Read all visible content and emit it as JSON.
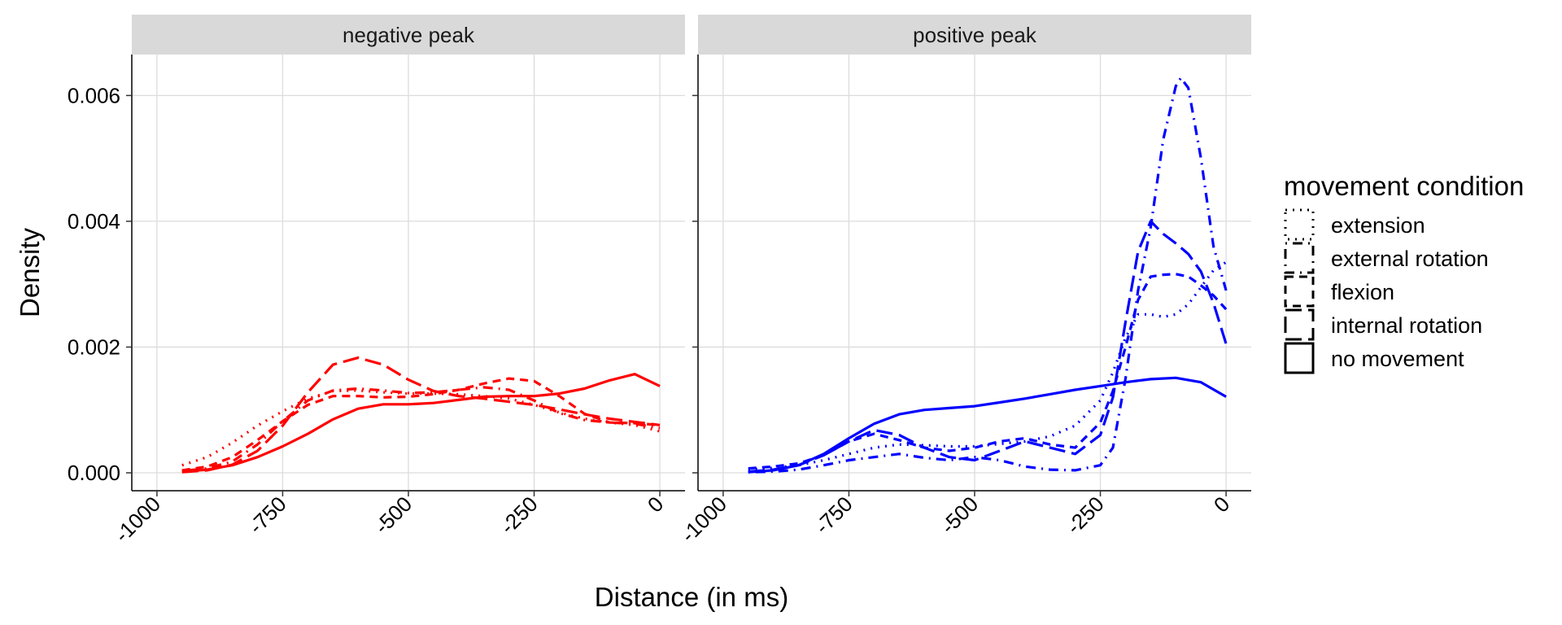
{
  "chart_data": {
    "type": "line",
    "xlabel": "Distance (in ms)",
    "ylabel": "Density",
    "xlim": [
      -1000,
      0
    ],
    "ylim": [
      0,
      0.0066
    ],
    "x_ticks": [
      -1000,
      -750,
      -500,
      -250,
      0
    ],
    "x_tick_labels": [
      "-1000",
      "-750",
      "-500",
      "-250",
      "0"
    ],
    "y_ticks": [
      0,
      0.002,
      0.004,
      0.006
    ],
    "y_tick_labels": [
      "0.000",
      "0.002",
      "0.004",
      "0.006"
    ],
    "grid": true,
    "legend": {
      "title": "movement condition",
      "position": "right",
      "entries": [
        {
          "label": "extension",
          "dash": "dotted"
        },
        {
          "label": "external rotation",
          "dash": "dotdash"
        },
        {
          "label": "flexion",
          "dash": "dashed"
        },
        {
          "label": "internal rotation",
          "dash": "longdash"
        },
        {
          "label": "no movement",
          "dash": "solid"
        }
      ]
    },
    "panels": [
      {
        "strip": "negative peak",
        "color": "#ff0000",
        "series": [
          {
            "name": "no movement",
            "dash": "solid",
            "x": [
              -950,
              -900,
              -850,
              -800,
              -750,
              -700,
              -650,
              -600,
              -550,
              -500,
              -450,
              -400,
              -350,
              -300,
              -250,
              -200,
              -150,
              -100,
              -50,
              0
            ],
            "y": [
              2e-05,
              5e-05,
              0.00012,
              0.00025,
              0.00042,
              0.00062,
              0.00085,
              0.00102,
              0.00109,
              0.00109,
              0.00111,
              0.00116,
              0.00121,
              0.00122,
              0.00122,
              0.00126,
              0.00134,
              0.00147,
              0.00157,
              0.00138
            ]
          },
          {
            "name": "extension",
            "dash": "dotted",
            "x": [
              -950,
              -900,
              -850,
              -800,
              -750,
              -700,
              -650,
              -600,
              -550,
              -500,
              -450,
              -400,
              -350,
              -300,
              -250,
              -200,
              -150,
              -100,
              -50,
              0
            ],
            "y": [
              0.00012,
              0.00025,
              0.00048,
              0.00075,
              0.00098,
              0.00118,
              0.0013,
              0.00131,
              0.00128,
              0.00126,
              0.00126,
              0.00125,
              0.00122,
              0.00118,
              0.00108,
              0.00096,
              0.00086,
              0.0008,
              0.00076,
              0.00066
            ]
          },
          {
            "name": "external rotation",
            "dash": "dotdash",
            "x": [
              -950,
              -900,
              -850,
              -800,
              -750,
              -700,
              -650,
              -600,
              -550,
              -500,
              -450,
              -400,
              -350,
              -300,
              -250,
              -200,
              -150,
              -100,
              -50,
              0
            ],
            "y": [
              3e-05,
              7e-05,
              0.00018,
              0.00045,
              0.00082,
              0.00115,
              0.00131,
              0.00134,
              0.00131,
              0.00127,
              0.00128,
              0.00132,
              0.00136,
              0.00132,
              0.00115,
              0.00095,
              0.00084,
              0.0008,
              0.00078,
              0.00071
            ]
          },
          {
            "name": "flexion",
            "dash": "dashed",
            "x": [
              -950,
              -900,
              -850,
              -800,
              -750,
              -700,
              -650,
              -600,
              -550,
              -500,
              -450,
              -400,
              -350,
              -300,
              -250,
              -200,
              -150,
              -100,
              -50,
              0
            ],
            "y": [
              4e-05,
              0.0001,
              0.00025,
              0.00052,
              0.00082,
              0.00108,
              0.00122,
              0.00122,
              0.0012,
              0.00121,
              0.00125,
              0.00132,
              0.00142,
              0.0015,
              0.00146,
              0.00122,
              0.00094,
              0.0008,
              0.00079,
              0.00076
            ]
          },
          {
            "name": "internal rotation",
            "dash": "longdash",
            "x": [
              -950,
              -900,
              -850,
              -800,
              -750,
              -700,
              -650,
              -600,
              -550,
              -500,
              -450,
              -400,
              -350,
              -300,
              -250,
              -200,
              -150,
              -100,
              -50,
              0
            ],
            "y": [
              1e-05,
              4e-05,
              0.00013,
              0.00035,
              0.00075,
              0.00128,
              0.00172,
              0.00183,
              0.00172,
              0.00148,
              0.0013,
              0.00122,
              0.00118,
              0.00113,
              0.00108,
              0.00101,
              0.00093,
              0.00086,
              0.00081,
              0.00076
            ]
          }
        ]
      },
      {
        "strip": "positive peak",
        "color": "#0000ff",
        "series": [
          {
            "name": "no movement",
            "dash": "solid",
            "x": [
              -950,
              -900,
              -850,
              -800,
              -750,
              -700,
              -650,
              -600,
              -550,
              -500,
              -450,
              -400,
              -350,
              -300,
              -250,
              -200,
              -150,
              -100,
              -50,
              0
            ],
            "y": [
              1e-05,
              4e-05,
              0.00012,
              0.0003,
              0.00055,
              0.00078,
              0.00093,
              0.001,
              0.00103,
              0.00106,
              0.00112,
              0.00118,
              0.00125,
              0.00132,
              0.00138,
              0.00144,
              0.00149,
              0.00151,
              0.00144,
              0.00121
            ]
          },
          {
            "name": "extension",
            "dash": "dotted",
            "x": [
              -950,
              -900,
              -850,
              -800,
              -750,
              -700,
              -650,
              -600,
              -550,
              -500,
              -450,
              -400,
              -350,
              -300,
              -250,
              -225,
              -200,
              -175,
              -150,
              -125,
              -100,
              -75,
              -50,
              -25,
              0
            ],
            "y": [
              5e-05,
              8e-05,
              0.00012,
              0.0002,
              0.0003,
              0.0004,
              0.00045,
              0.00044,
              0.00042,
              0.00042,
              0.00046,
              0.0005,
              0.00058,
              0.00075,
              0.00115,
              0.0016,
              0.00215,
              0.00252,
              0.00252,
              0.00248,
              0.00252,
              0.00268,
              0.00295,
              0.00322,
              0.00335
            ]
          },
          {
            "name": "external rotation",
            "dash": "dotdash",
            "x": [
              -950,
              -900,
              -850,
              -800,
              -750,
              -700,
              -650,
              -600,
              -550,
              -500,
              -450,
              -400,
              -350,
              -300,
              -250,
              -225,
              -200,
              -175,
              -150,
              -125,
              -100,
              -90,
              -75,
              -50,
              -25,
              0
            ],
            "y": [
              1e-05,
              2e-05,
              5e-05,
              0.00012,
              0.0002,
              0.00025,
              0.0003,
              0.00024,
              0.0002,
              0.00025,
              0.0002,
              0.0001,
              5e-05,
              4e-05,
              0.00012,
              0.0004,
              0.0015,
              0.0029,
              0.0039,
              0.0053,
              0.00615,
              0.00628,
              0.00612,
              0.005,
              0.0036,
              0.0029
            ]
          },
          {
            "name": "flexion",
            "dash": "dashed",
            "x": [
              -950,
              -900,
              -850,
              -800,
              -750,
              -700,
              -650,
              -600,
              -550,
              -500,
              -450,
              -400,
              -350,
              -300,
              -250,
              -225,
              -200,
              -175,
              -150,
              -125,
              -100,
              -75,
              -50,
              -25,
              0
            ],
            "y": [
              7e-05,
              0.0001,
              0.00015,
              0.00028,
              0.0005,
              0.00062,
              0.00052,
              0.0004,
              0.00035,
              0.0004,
              0.0005,
              0.00055,
              0.00045,
              0.0004,
              0.0008,
              0.0013,
              0.002,
              0.00275,
              0.00312,
              0.00315,
              0.00316,
              0.00312,
              0.00298,
              0.00282,
              0.0026
            ]
          },
          {
            "name": "internal rotation",
            "dash": "longdash",
            "x": [
              -950,
              -900,
              -850,
              -800,
              -750,
              -700,
              -650,
              -600,
              -550,
              -500,
              -450,
              -400,
              -350,
              -300,
              -250,
              -225,
              -200,
              -175,
              -150,
              -125,
              -100,
              -75,
              -50,
              -25,
              0
            ],
            "y": [
              2e-05,
              5e-05,
              0.00012,
              0.00028,
              0.0005,
              0.00068,
              0.0006,
              0.0004,
              0.00025,
              0.0002,
              0.00035,
              0.0005,
              0.0004,
              0.0003,
              0.0006,
              0.0012,
              0.0024,
              0.00352,
              0.004,
              0.0038,
              0.00365,
              0.00348,
              0.0032,
              0.0027,
              0.00205
            ]
          }
        ]
      }
    ]
  }
}
